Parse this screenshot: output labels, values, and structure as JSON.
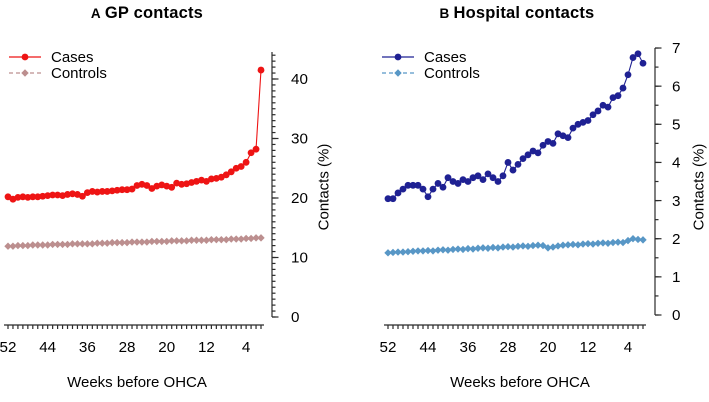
{
  "figure": {
    "background": "#ffffff",
    "axis_color": "#2b2b2b",
    "text_color": "#000000"
  },
  "chart_data": [
    {
      "type": "line",
      "panel_label": "A",
      "title": "GP contacts",
      "xlabel": "Weeks before OHCA",
      "ylabel": "Contacts (%)",
      "legend_position": "top-left",
      "x_reversed": true,
      "weeks_range": [
        52,
        1
      ],
      "x_tick_labels": [
        "52",
        "44",
        "36",
        "28",
        "20",
        "12",
        "4"
      ],
      "x_tick_weeks": [
        52,
        44,
        36,
        28,
        20,
        12,
        4
      ],
      "ylim": [
        0,
        44
      ],
      "y_major_ticks": [
        0,
        10,
        20,
        30,
        40
      ],
      "y_minor_step": 1,
      "grid": "off",
      "series": [
        {
          "name": "Cases",
          "color": "#ee1414",
          "marker": "circle",
          "line_style": "solid",
          "values": [
            20.2,
            19.8,
            20.1,
            20.2,
            20.1,
            20.2,
            20.2,
            20.3,
            20.4,
            20.5,
            20.5,
            20.4,
            20.6,
            20.7,
            20.6,
            20.3,
            20.9,
            21.1,
            21.0,
            21.1,
            21.1,
            21.2,
            21.3,
            21.4,
            21.4,
            21.5,
            22.1,
            22.3,
            22.1,
            21.6,
            22.0,
            22.2,
            22.0,
            21.8,
            22.5,
            22.3,
            22.4,
            22.6,
            22.8,
            23.0,
            22.8,
            23.2,
            23.3,
            23.5,
            23.9,
            24.4,
            25.0,
            25.3,
            26.0,
            27.6,
            28.2,
            41.5
          ]
        },
        {
          "name": "Controls",
          "color": "#bc8f8f",
          "marker": "diamond",
          "line_style": "dashed",
          "values": [
            11.9,
            11.9,
            12.0,
            12.0,
            12.0,
            12.1,
            12.1,
            12.1,
            12.1,
            12.2,
            12.2,
            12.2,
            12.2,
            12.3,
            12.3,
            12.3,
            12.3,
            12.3,
            12.4,
            12.4,
            12.4,
            12.5,
            12.5,
            12.5,
            12.5,
            12.6,
            12.6,
            12.6,
            12.6,
            12.7,
            12.7,
            12.7,
            12.7,
            12.8,
            12.8,
            12.8,
            12.8,
            12.9,
            12.9,
            12.9,
            12.9,
            13.0,
            13.0,
            13.0,
            13.0,
            13.1,
            13.1,
            13.1,
            13.2,
            13.2,
            13.3,
            13.3
          ]
        }
      ]
    },
    {
      "type": "line",
      "panel_label": "B",
      "title": "Hospital contacts",
      "xlabel": "Weeks before OHCA",
      "ylabel": "Contacts (%)",
      "legend_position": "top-left",
      "x_reversed": true,
      "weeks_range": [
        52,
        1
      ],
      "x_tick_labels": [
        "52",
        "44",
        "36",
        "28",
        "20",
        "12",
        "4"
      ],
      "x_tick_weeks": [
        52,
        44,
        36,
        28,
        20,
        12,
        4
      ],
      "ylim": [
        0,
        7
      ],
      "y_major_ticks": [
        0,
        1,
        2,
        3,
        4,
        5,
        6,
        7
      ],
      "y_minor_step": 0.5,
      "grid": "off",
      "series": [
        {
          "name": "Cases",
          "color": "#1f2193",
          "marker": "circle",
          "line_style": "solid",
          "values": [
            3.05,
            3.05,
            3.2,
            3.3,
            3.4,
            3.4,
            3.4,
            3.3,
            3.1,
            3.3,
            3.45,
            3.35,
            3.6,
            3.5,
            3.45,
            3.55,
            3.5,
            3.6,
            3.65,
            3.55,
            3.7,
            3.6,
            3.5,
            3.65,
            4.0,
            3.8,
            3.95,
            4.1,
            4.2,
            4.3,
            4.25,
            4.45,
            4.55,
            4.5,
            4.75,
            4.7,
            4.65,
            4.9,
            5.0,
            5.05,
            5.1,
            5.25,
            5.35,
            5.5,
            5.45,
            5.7,
            5.75,
            5.95,
            6.3,
            6.75,
            6.85,
            6.6
          ]
        },
        {
          "name": "Controls",
          "color": "#5897c6",
          "marker": "diamond",
          "line_style": "dashed",
          "values": [
            1.63,
            1.64,
            1.65,
            1.65,
            1.66,
            1.67,
            1.68,
            1.68,
            1.69,
            1.68,
            1.7,
            1.71,
            1.7,
            1.72,
            1.73,
            1.72,
            1.74,
            1.73,
            1.75,
            1.76,
            1.75,
            1.77,
            1.76,
            1.78,
            1.79,
            1.78,
            1.8,
            1.81,
            1.8,
            1.82,
            1.83,
            1.82,
            1.76,
            1.78,
            1.81,
            1.83,
            1.84,
            1.85,
            1.84,
            1.86,
            1.87,
            1.86,
            1.88,
            1.89,
            1.88,
            1.9,
            1.91,
            1.9,
            1.95,
            2.0,
            1.98,
            1.97
          ]
        }
      ]
    }
  ]
}
